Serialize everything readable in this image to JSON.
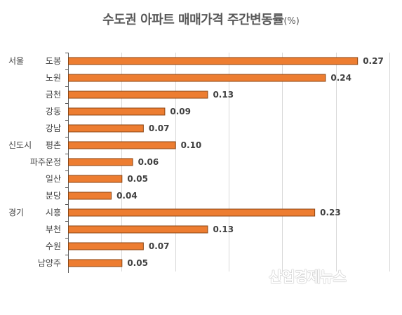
{
  "title": {
    "main": "수도권 아파트 매매가격 주간변동률",
    "unit": "(%)"
  },
  "watermark": "산업경제뉴스",
  "colors": {
    "bar": "#ED7D31",
    "bar_stroke": "#8B4513",
    "grid": "#D9D9D9",
    "axis": "#595959",
    "label": "#404040"
  },
  "chart_data": {
    "type": "bar",
    "orientation": "horizontal",
    "groups": [
      {
        "name": "서울",
        "start_index": 0
      },
      {
        "name": "신도시",
        "start_index": 5
      },
      {
        "name": "경기",
        "start_index": 9
      }
    ],
    "categories": [
      "도봉",
      "노원",
      "금천",
      "강동",
      "강남",
      "평촌",
      "파주운정",
      "일산",
      "분당",
      "시흥",
      "부천",
      "수원",
      "남양주"
    ],
    "values": [
      0.27,
      0.24,
      0.13,
      0.09,
      0.07,
      0.1,
      0.06,
      0.05,
      0.04,
      0.23,
      0.13,
      0.07,
      0.05
    ],
    "value_labels": [
      "0.27",
      "0.24",
      "0.13",
      "0.09",
      "0.07",
      "0.10",
      "0.06",
      "0.05",
      "0.04",
      "0.23",
      "0.13",
      "0.07",
      "0.05"
    ],
    "xlim": [
      0,
      0.3
    ],
    "grid": true,
    "legend": "none"
  }
}
